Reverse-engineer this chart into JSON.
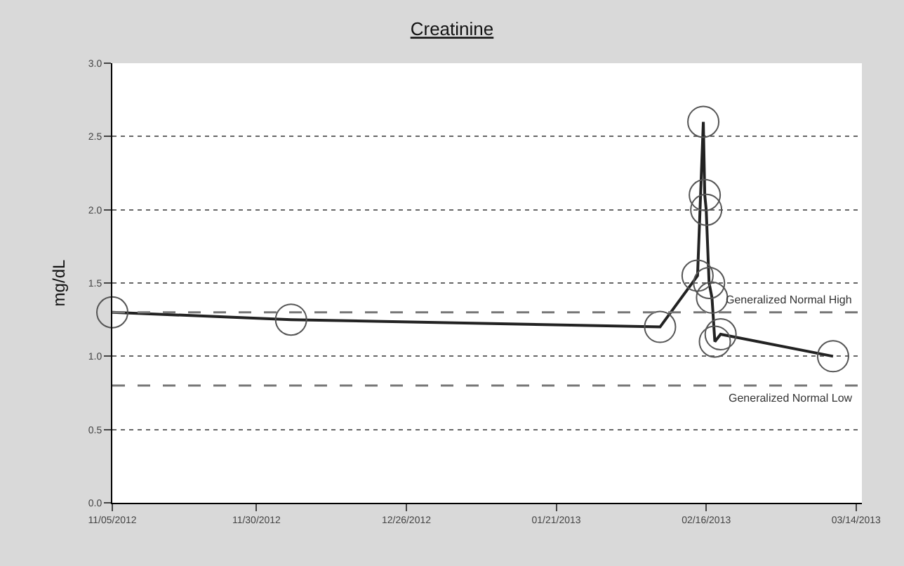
{
  "chart_data": {
    "type": "line",
    "title": "Creatinine",
    "ylabel": "mg/dL",
    "x": [
      "2012-11-05",
      "2012-12-06",
      "2013-02-08",
      "2013-02-14T12:00",
      "2013-02-15T12:00",
      "2013-02-15T18:00",
      "2013-02-16",
      "2013-02-16T12:00",
      "2013-02-17",
      "2013-02-17T12:00",
      "2013-02-18T12:00",
      "2013-03-10"
    ],
    "series": [
      {
        "color": "#222222",
        "values": [
          1.3,
          1.25,
          1.2,
          1.55,
          2.6,
          2.1,
          2.0,
          1.5,
          1.4,
          1.1,
          1.15,
          1.0
        ]
      }
    ],
    "marker": "circle",
    "line_style": "solid",
    "grid": "y",
    "xlim": [
      "2012-11-05",
      "2013-03-15"
    ],
    "xticks": [
      {
        "value": "2012-11-05",
        "label": "11/05/2012"
      },
      {
        "value": "2012-11-30",
        "label": "11/30/2012"
      },
      {
        "value": "2012-12-26",
        "label": "12/26/2012"
      },
      {
        "value": "2013-01-21",
        "label": "01/21/2013"
      },
      {
        "value": "2013-02-16",
        "label": "02/16/2013"
      },
      {
        "value": "2013-03-14",
        "label": "03/14/2013"
      }
    ],
    "ylim": [
      0,
      3
    ],
    "yticks": [
      {
        "value": 0,
        "label": "0.0"
      },
      {
        "value": 0.5,
        "label": "0.5"
      },
      {
        "value": 1,
        "label": "1.0"
      },
      {
        "value": 1.5,
        "label": "1.5"
      },
      {
        "value": 2,
        "label": "2.0"
      },
      {
        "value": 2.5,
        "label": "2.5"
      },
      {
        "value": 3,
        "label": "3.0"
      }
    ],
    "ref_lines": [
      {
        "axis": "y",
        "value": 1.3,
        "label": "Generalized Normal High",
        "color": "#777777",
        "line_style": "dashed"
      },
      {
        "axis": "y",
        "value": 0.8,
        "label": "Generalized Normal Low",
        "color": "#777777",
        "line_style": "dashed"
      }
    ]
  }
}
